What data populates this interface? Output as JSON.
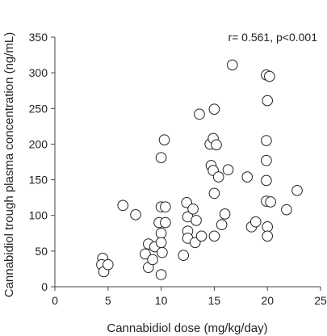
{
  "chart_data": {
    "type": "scatter",
    "title": "",
    "xlabel": "Cannabidiol dose (mg/kg/day)",
    "ylabel": "Cannabidiol trough plasma concentration (ng/mL)",
    "annotation": "r= 0.561, p<0.001",
    "xlim": [
      0,
      25
    ],
    "ylim": [
      0,
      350
    ],
    "xticks": [
      "0",
      "5",
      "10",
      "15",
      "20",
      "25"
    ],
    "yticks": [
      "0",
      "50",
      "100",
      "150",
      "200",
      "250",
      "300",
      "350"
    ],
    "grid": false,
    "legend": "none",
    "marker": {
      "shape": "open-circle",
      "stroke": "#222222",
      "fill": "#ffffff"
    },
    "series": [
      {
        "points": [
          [
            4.5,
            40
          ],
          [
            4.4,
            31
          ],
          [
            4.6,
            21
          ],
          [
            5.0,
            31
          ],
          [
            6.4,
            114
          ],
          [
            7.6,
            101
          ],
          [
            8.5,
            46
          ],
          [
            8.8,
            60
          ],
          [
            8.8,
            27
          ],
          [
            9.2,
            38
          ],
          [
            9.4,
            56
          ],
          [
            9.8,
            90
          ],
          [
            10.0,
            181
          ],
          [
            10.0,
            112
          ],
          [
            10.0,
            75
          ],
          [
            10.0,
            62
          ],
          [
            10.0,
            17
          ],
          [
            10.3,
            206
          ],
          [
            10.4,
            112
          ],
          [
            10.4,
            90
          ],
          [
            10.1,
            48
          ],
          [
            12.1,
            44
          ],
          [
            12.4,
            118
          ],
          [
            12.5,
            98
          ],
          [
            12.5,
            78
          ],
          [
            12.5,
            68
          ],
          [
            13.0,
            109
          ],
          [
            13.2,
            62
          ],
          [
            13.3,
            93
          ],
          [
            13.6,
            242
          ],
          [
            13.8,
            71
          ],
          [
            14.6,
            200
          ],
          [
            14.7,
            170
          ],
          [
            14.9,
            208
          ],
          [
            14.9,
            163
          ],
          [
            15.0,
            249
          ],
          [
            15.0,
            131
          ],
          [
            15.0,
            71
          ],
          [
            15.2,
            199
          ],
          [
            15.4,
            154
          ],
          [
            15.7,
            87
          ],
          [
            16.0,
            102
          ],
          [
            16.3,
            164
          ],
          [
            16.7,
            311
          ],
          [
            18.1,
            154
          ],
          [
            18.5,
            84
          ],
          [
            18.9,
            91
          ],
          [
            19.9,
            297
          ],
          [
            20.0,
            261
          ],
          [
            19.9,
            205
          ],
          [
            19.9,
            177
          ],
          [
            19.9,
            149
          ],
          [
            19.9,
            120
          ],
          [
            20.0,
            84
          ],
          [
            20.0,
            71
          ],
          [
            20.2,
            295
          ],
          [
            20.3,
            119
          ],
          [
            21.8,
            108
          ],
          [
            22.8,
            135
          ]
        ]
      }
    ]
  }
}
